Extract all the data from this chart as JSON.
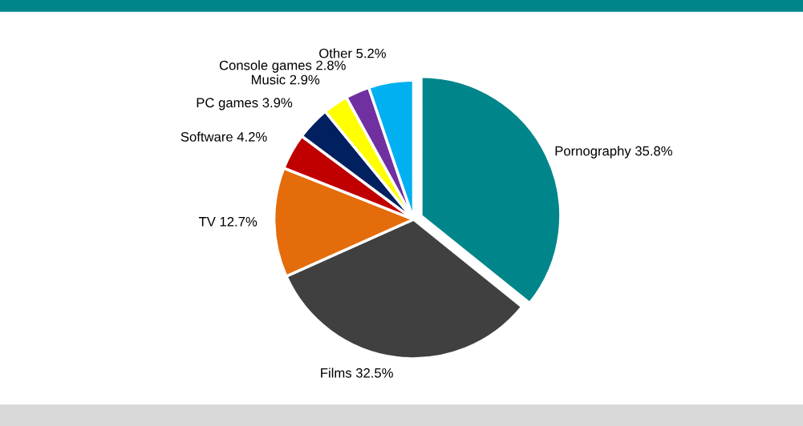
{
  "chart_data": {
    "type": "pie",
    "categories": [
      "Pornography",
      "Films",
      "TV",
      "Software",
      "PC games",
      "Music",
      "Console games",
      "Other"
    ],
    "values": [
      35.8,
      32.5,
      12.7,
      4.2,
      3.9,
      2.9,
      2.8,
      5.2
    ],
    "value_labels": [
      "35.8%",
      "32.5%",
      "12.7%",
      "4.2%",
      "3.9%",
      "2.9%",
      "2.8%",
      "5.2%"
    ],
    "colors": [
      "#00868a",
      "#404040",
      "#e46c0a",
      "#c00000",
      "#002060",
      "#ffff00",
      "#7030a0",
      "#00b0f0"
    ],
    "legend": false
  }
}
